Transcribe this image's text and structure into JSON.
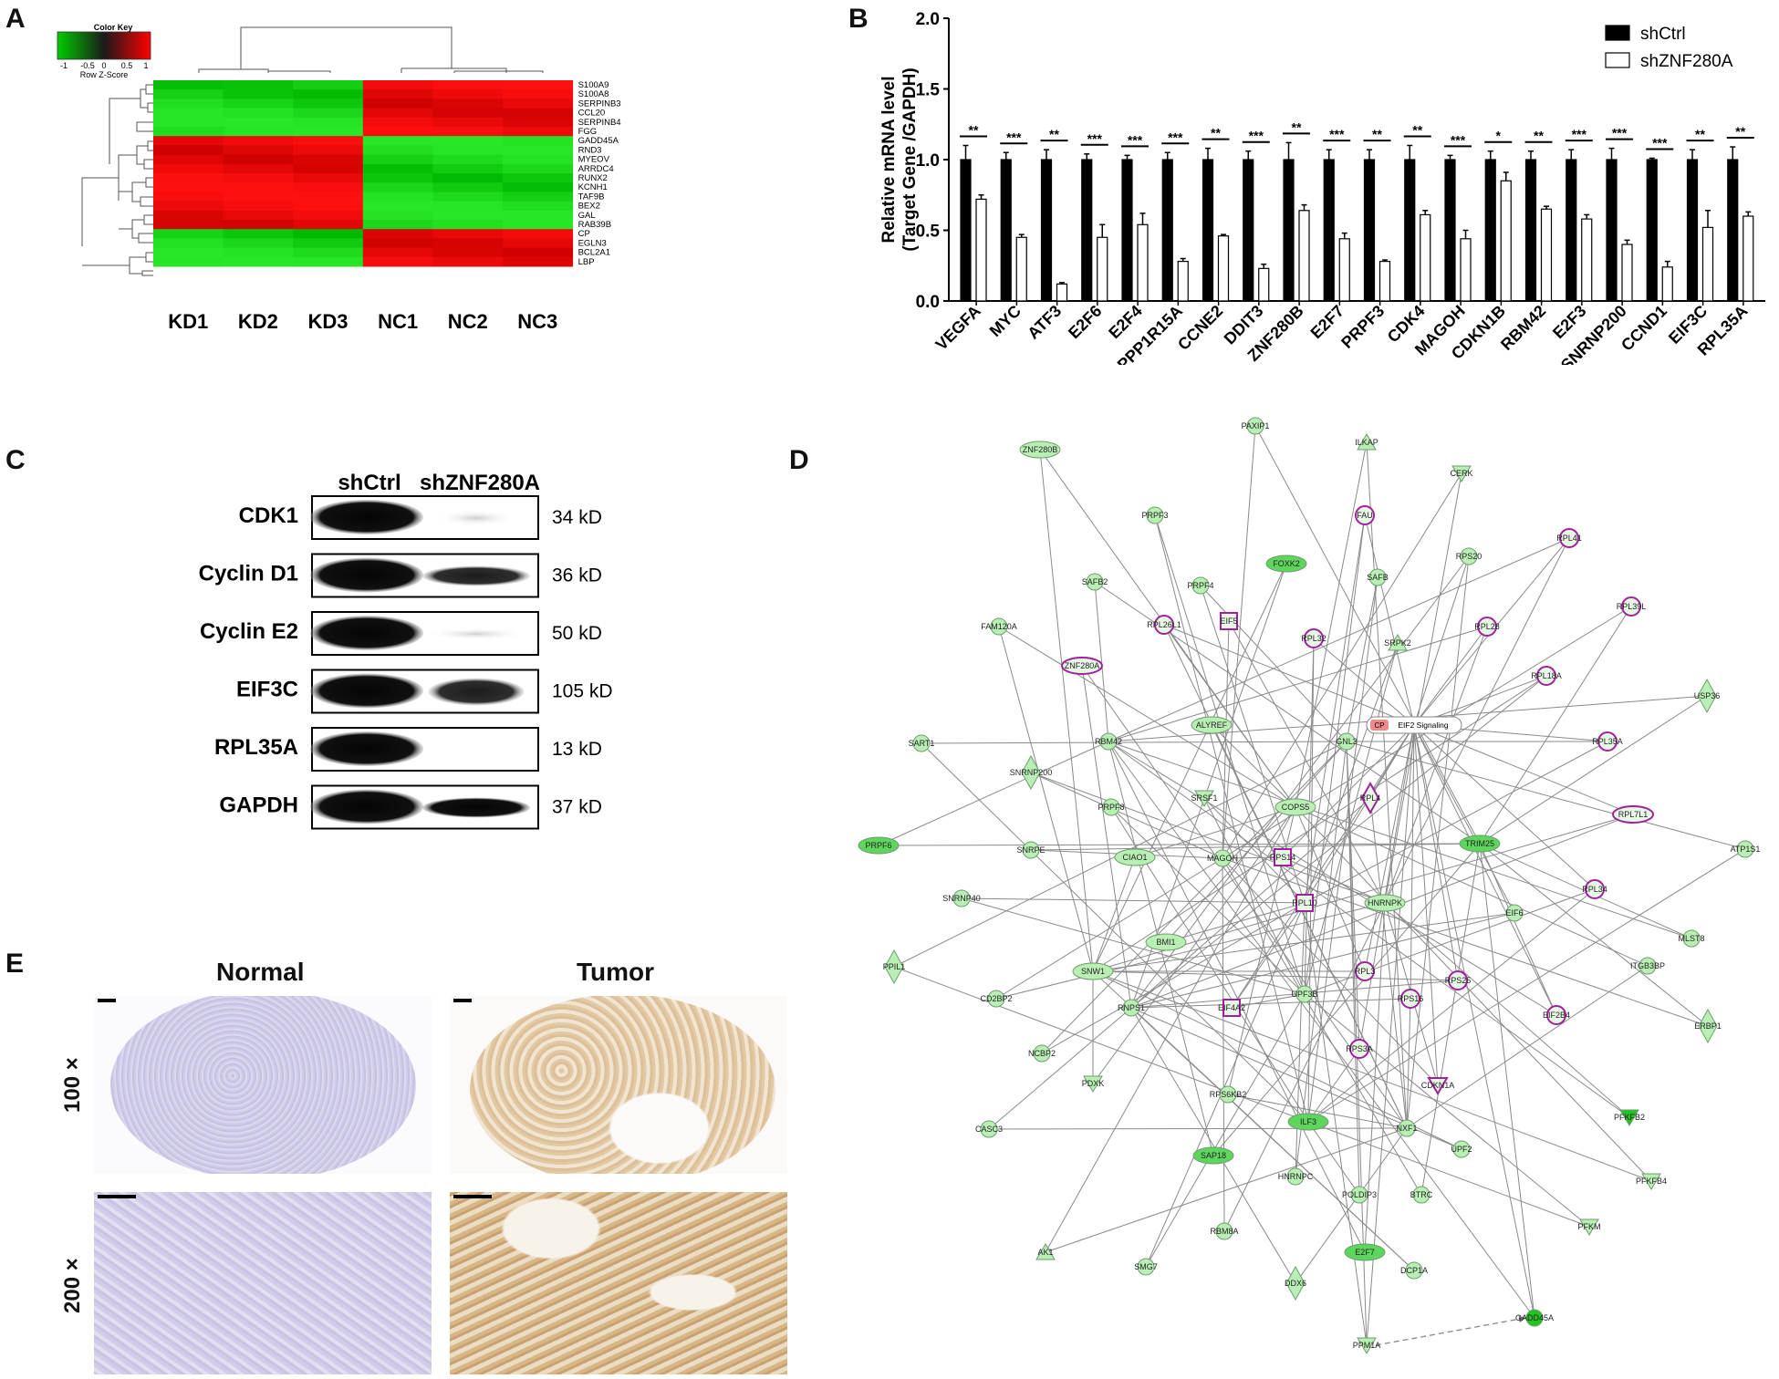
{
  "panels": {
    "A": {
      "letter": "A",
      "color_key": {
        "title": "Color Key",
        "ticks": [
          "-1",
          "-0.5",
          "0",
          "0.5",
          "1"
        ],
        "subtitle": "Row Z-Score"
      },
      "columns": [
        "KD1",
        "KD2",
        "KD3",
        "NC1",
        "NC2",
        "NC3"
      ],
      "genes": [
        "S100A9",
        "S100A8",
        "SERPINB3",
        "CCL20",
        "SERPINB4",
        "FGG",
        "GADD45A",
        "RND3",
        "MYEOV",
        "ARRDC4",
        "RUNX2",
        "KCNH1",
        "TAF9B",
        "BEX2",
        "GAL",
        "RAB39B",
        "CP",
        "EGLN3",
        "BCL2A1",
        "LBP"
      ]
    },
    "B": {
      "letter": "B"
    },
    "C": {
      "letter": "C",
      "column_labels": [
        "shCtrl",
        "shZNF280A"
      ],
      "blots": [
        {
          "protein": "CDK1",
          "size": "34 kD"
        },
        {
          "protein": "Cyclin D1",
          "size": "36 kD"
        },
        {
          "protein": "Cyclin E2",
          "size": "50 kD"
        },
        {
          "protein": "EIF3C",
          "size": "105 kD"
        },
        {
          "protein": "RPL35A",
          "size": "13 kD"
        },
        {
          "protein": "GAPDH",
          "size": "37 kD"
        }
      ]
    },
    "D": {
      "letter": "D",
      "pathway_node": {
        "prefix": "CP",
        "label": "EIF2 Signaling"
      },
      "nodes": [
        "PAXIP1",
        "ZNF280B",
        "ILKAP",
        "CERK",
        "PRPF3",
        "FAU",
        "RPL41",
        "RPS20",
        "FOXK2",
        "SAFB2",
        "PRPF4",
        "SAFB",
        "RPL39L",
        "FAM120A",
        "RPL26L1",
        "EIF5",
        "RPL32",
        "SRPK2",
        "RPL28",
        "ZNF280A",
        "RPL18A",
        "USP36",
        "RPL35A",
        "SART1",
        "RBM42",
        "GNL3",
        "ALYREF",
        "SNRNP200",
        "PRPF8",
        "SRSF1",
        "COPS5",
        "RPL4",
        "RPL7L1",
        "PRPF6",
        "TRIM25",
        "ATP1S1",
        "SNRPE",
        "CIAO1",
        "MAGOH",
        "RPS14",
        "RPL34",
        "SNRNP40",
        "RPL10",
        "HNRNPK",
        "EIF6",
        "MLST8",
        "BMI1",
        "PPIL1",
        "SNW1",
        "RPL3",
        "ITGB3BP",
        "CD2BP2",
        "RNPS1",
        "EIF4A2",
        "UPF3B",
        "RPS16",
        "RPS25",
        "EIF2B4",
        "NCBP2",
        "RPS3A",
        "ERBP1",
        "PDXK",
        "RPS6KB2",
        "CDKN1A",
        "ILF3",
        "NXF1",
        "PFKFB2",
        "CASC3",
        "UPF2",
        "SAP18",
        "HNRNPC",
        "POLDIP3",
        "BTRC",
        "PFKFB4",
        "AK1",
        "RBM8A",
        "PFKM",
        "SMG7",
        "E2F7",
        "DDX6",
        "DCP1A",
        "GADD45A",
        "PPM1A"
      ]
    },
    "E": {
      "letter": "E",
      "columns": [
        "Normal",
        "Tumor"
      ],
      "rows": [
        "100 ×",
        "200 ×"
      ]
    }
  },
  "chart_data": {
    "type": "bar",
    "title": "",
    "ylabel_lines": [
      "Relative mRNA level",
      "(Target Gene /GAPDH)"
    ],
    "xlabel": "",
    "ylim": [
      0,
      2.0
    ],
    "yticks": [
      "0.0",
      "0.5",
      "1.0",
      "1.5",
      "2.0"
    ],
    "categories": [
      "VEGFA",
      "MYC",
      "ATF3",
      "E2F6",
      "E2F4",
      "PPP1R15A",
      "CCNE2",
      "DDIT3",
      "ZNF280B",
      "E2F7",
      "PRPF3",
      "CDK4",
      "MAGOH",
      "CDKN1B",
      "RBM42",
      "E2F3",
      "SNRNP200",
      "CCND1",
      "EIF3C",
      "RPL35A"
    ],
    "significance": [
      "**",
      "***",
      "**",
      "***",
      "***",
      "***",
      "**",
      "***",
      "**",
      "***",
      "**",
      "**",
      "***",
      "*",
      "**",
      "***",
      "***",
      "***",
      "**",
      "**"
    ],
    "series": [
      {
        "name": "shCtrl",
        "color": "#000000",
        "values": [
          1.0,
          1.0,
          1.0,
          1.0,
          1.0,
          1.0,
          1.0,
          1.0,
          1.0,
          1.0,
          1.0,
          1.0,
          1.0,
          1.0,
          1.0,
          1.0,
          1.0,
          1.0,
          1.0,
          1.0
        ],
        "errors": [
          0.1,
          0.05,
          0.07,
          0.04,
          0.03,
          0.05,
          0.08,
          0.06,
          0.12,
          0.07,
          0.07,
          0.1,
          0.03,
          0.06,
          0.06,
          0.07,
          0.08,
          0.01,
          0.07,
          0.09
        ]
      },
      {
        "name": "shZNF280A",
        "color": "#ffffff",
        "values": [
          0.72,
          0.45,
          0.12,
          0.45,
          0.54,
          0.28,
          0.46,
          0.23,
          0.64,
          0.44,
          0.28,
          0.61,
          0.44,
          0.85,
          0.65,
          0.58,
          0.4,
          0.24,
          0.52,
          0.6
        ],
        "errors": [
          0.03,
          0.02,
          0.01,
          0.09,
          0.08,
          0.02,
          0.01,
          0.03,
          0.04,
          0.04,
          0.01,
          0.03,
          0.06,
          0.06,
          0.02,
          0.03,
          0.03,
          0.04,
          0.12,
          0.03
        ]
      }
    ],
    "legend_position": "top-right"
  }
}
